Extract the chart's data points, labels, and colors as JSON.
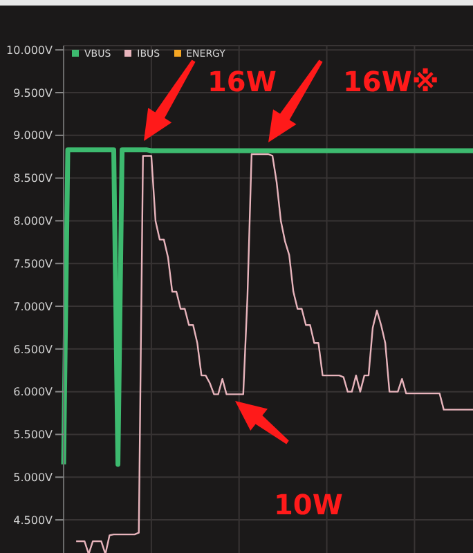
{
  "chart_data": {
    "type": "line",
    "categories": [
      null,
      null,
      null,
      null,
      null,
      null,
      null,
      null,
      null,
      null,
      null,
      null,
      null,
      null,
      null,
      null,
      null,
      null,
      null,
      null,
      null,
      null,
      null,
      null,
      null,
      null,
      null,
      null,
      null,
      null,
      null,
      null,
      null,
      null,
      null,
      null,
      null,
      null,
      null,
      null,
      null,
      null,
      null,
      null,
      null,
      null,
      null,
      null,
      null,
      null,
      null,
      null,
      null,
      null,
      null,
      null,
      null,
      null,
      null,
      null,
      null,
      null,
      null,
      null,
      null,
      null,
      null,
      null,
      null,
      null,
      null,
      null,
      null,
      null,
      null,
      null,
      null,
      null,
      null,
      null,
      null,
      null,
      null,
      null,
      null,
      null,
      null,
      null,
      null,
      null,
      null,
      null,
      null,
      null,
      null,
      null,
      null,
      null,
      null
    ],
    "series": [
      {
        "name": "VBUS",
        "color": "#3dba6f",
        "values": [
          5.15,
          8.83,
          8.83,
          8.83,
          8.83,
          8.83,
          8.83,
          8.83,
          8.83,
          8.83,
          8.83,
          8.83,
          8.83,
          5.15,
          8.83,
          8.83,
          8.83,
          8.83,
          8.83,
          8.83,
          8.83,
          8.82,
          8.82,
          8.82,
          8.82,
          8.82,
          8.82,
          8.82,
          8.82,
          8.82,
          8.82,
          8.82,
          8.82,
          8.82,
          8.82,
          8.82,
          8.82,
          8.82,
          8.82,
          8.82,
          8.82,
          8.82,
          8.82,
          8.82,
          8.82,
          8.82,
          8.82,
          8.82,
          8.82,
          8.82,
          8.82,
          8.82,
          8.82,
          8.82,
          8.82,
          8.82,
          8.82,
          8.82,
          8.82,
          8.82,
          8.82,
          8.82,
          8.82,
          8.82,
          8.82,
          8.82,
          8.82,
          8.82,
          8.82,
          8.82,
          8.82,
          8.82,
          8.82,
          8.82,
          8.82,
          8.82,
          8.82,
          8.82,
          8.82,
          8.82,
          8.82,
          8.82,
          8.82,
          8.82,
          8.82,
          8.82,
          8.82,
          8.82,
          8.82,
          8.82,
          8.82,
          8.82,
          8.82,
          8.82,
          8.82,
          8.82,
          8.82,
          8.82,
          8.82
        ]
      },
      {
        "name": "IBUS",
        "color": "#e8b4bc",
        "values": [
          null,
          null,
          null,
          4.25,
          4.25,
          4.25,
          4.1,
          4.25,
          4.25,
          4.25,
          4.1,
          4.32,
          4.33,
          4.33,
          4.33,
          4.33,
          4.33,
          4.33,
          4.35,
          8.76,
          8.76,
          8.76,
          8.0,
          7.78,
          7.78,
          7.57,
          7.17,
          7.17,
          6.97,
          6.97,
          6.78,
          6.78,
          6.57,
          6.19,
          6.19,
          6.1,
          5.97,
          5.97,
          6.15,
          5.97,
          5.97,
          5.97,
          5.97,
          5.97,
          7.1,
          8.78,
          8.78,
          8.78,
          8.78,
          8.78,
          8.76,
          8.45,
          8.0,
          7.76,
          7.6,
          7.17,
          6.97,
          6.97,
          6.78,
          6.78,
          6.57,
          6.57,
          6.19,
          6.19,
          6.19,
          6.19,
          6.19,
          6.17,
          6.0,
          6.0,
          6.19,
          6.0,
          6.19,
          6.19,
          6.75,
          6.95,
          6.78,
          6.57,
          6.0,
          6.0,
          6.0,
          6.15,
          5.98,
          5.98,
          5.98,
          5.98,
          5.98,
          5.98,
          5.98,
          5.98,
          5.98,
          5.79,
          5.79,
          5.79,
          5.79,
          5.79,
          5.79,
          5.79,
          5.79
        ]
      },
      {
        "name": "ENERGY",
        "color": "#f5a623",
        "values": [
          null,
          null,
          null,
          null,
          null,
          null,
          null,
          null,
          null,
          null,
          null,
          null,
          null,
          null,
          null,
          null,
          null,
          null,
          null,
          null,
          null,
          null,
          null,
          null,
          null,
          null,
          null,
          null,
          null,
          null,
          null,
          null,
          null,
          null,
          null,
          null,
          null,
          null,
          null,
          null,
          null,
          null,
          null,
          null,
          null,
          null,
          null,
          null,
          null,
          null,
          null,
          null,
          null,
          null,
          null,
          null,
          null,
          null,
          null,
          null,
          null,
          null,
          null,
          null,
          null,
          null,
          null,
          null,
          null,
          null,
          null,
          null,
          null,
          null,
          null,
          null,
          null,
          null,
          null,
          null,
          null,
          null,
          null,
          null,
          null,
          null,
          null,
          null,
          null,
          null,
          null,
          null,
          null,
          null,
          null,
          null,
          null,
          null,
          null
        ]
      }
    ],
    "ylim": [
      4.08,
      10.05
    ],
    "yticks": [
      {
        "value": 4.5,
        "label": "4.500V"
      },
      {
        "value": 5,
        "label": "5.000V"
      },
      {
        "value": 5.5,
        "label": "5.500V"
      },
      {
        "value": 6,
        "label": "6.000V"
      },
      {
        "value": 6.5,
        "label": "6.500V"
      },
      {
        "value": 7,
        "label": "7.000V"
      },
      {
        "value": 7.5,
        "label": "7.500V"
      },
      {
        "value": 8,
        "label": "8.000V"
      },
      {
        "value": 8.5,
        "label": "8.500V"
      },
      {
        "value": 9,
        "label": "9.000V"
      },
      {
        "value": 9.5,
        "label": "9.500V"
      },
      {
        "value": 10,
        "label": "10.000V"
      }
    ],
    "tick_labels": "y",
    "grid": true,
    "legend": "top left",
    "marker": "none",
    "line_style": "solid",
    "annotations": [
      "16W",
      "16W※",
      "10W"
    ]
  }
}
